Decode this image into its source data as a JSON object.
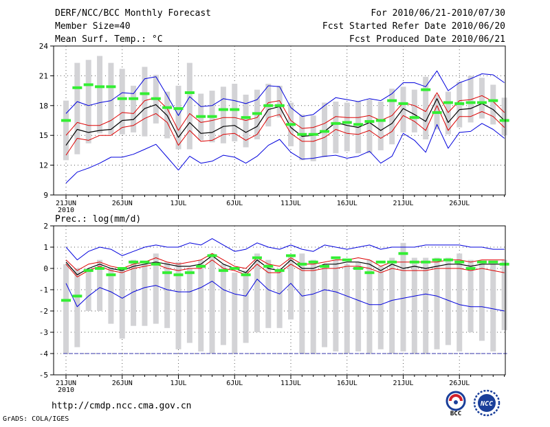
{
  "header": {
    "title": "DERF/NCC/BCC Monthly Forecast",
    "member_size": "Member Size=40",
    "variable": "Mean Surf. Temp.: °C",
    "period": "For 2010/06/21-2010/07/30",
    "started": "Fcst Started Refer Date 2010/06/20",
    "produced": "Fcst Produced Date 2010/06/21"
  },
  "footer": {
    "url": "http://cmdp.ncc.cma.gov.cn",
    "grads": "GrADS: COLA/IGES",
    "logo_bcc": "BCC",
    "logo_ncc": "NCC"
  },
  "colors": {
    "box": "#d3d3d6",
    "mean": "#000000",
    "spread": "#dd0000",
    "extreme": "#0000dd",
    "obs": "#33ee33",
    "grid": "#555555"
  },
  "chart_data": [
    {
      "type": "line",
      "title": "Mean Surf. Temp.: °C",
      "ylim": [
        9,
        24
      ],
      "yticks": [
        9,
        12,
        15,
        18,
        21,
        24
      ],
      "xtick_labels": [
        "21JUN",
        "26JUN",
        "1JUL",
        "6JUL",
        "11JUL",
        "16JUL",
        "21JUL",
        "26JUL"
      ],
      "year_label": "2010",
      "grid": "dotted",
      "days": 40,
      "series": [
        {
          "name": "ensemble_mean",
          "values": [
            14.0,
            15.6,
            15.3,
            15.5,
            15.6,
            16.5,
            16.6,
            17.7,
            18.1,
            17.0,
            14.8,
            16.3,
            15.2,
            15.3,
            15.9,
            16.0,
            15.3,
            15.9,
            17.6,
            17.9,
            15.8,
            14.9,
            15.0,
            15.4,
            16.3,
            16.0,
            15.8,
            16.3,
            15.5,
            16.2,
            17.7,
            17.1,
            16.4,
            18.7,
            16.3,
            17.6,
            17.7,
            18.2,
            17.6,
            16.5
          ]
        },
        {
          "name": "upper_spread",
          "values": [
            15.0,
            16.3,
            16.0,
            16.0,
            16.5,
            17.3,
            17.2,
            18.5,
            18.8,
            17.7,
            15.5,
            17.2,
            16.3,
            16.5,
            16.8,
            16.8,
            16.5,
            16.8,
            18.3,
            18.5,
            16.5,
            15.7,
            15.8,
            16.2,
            16.9,
            16.8,
            16.8,
            17.0,
            16.5,
            17.0,
            18.3,
            18.0,
            17.4,
            19.3,
            17.3,
            18.5,
            18.6,
            19.0,
            18.4,
            17.3
          ]
        },
        {
          "name": "lower_spread",
          "values": [
            13.0,
            14.7,
            14.5,
            15.0,
            15.0,
            15.8,
            16.0,
            16.7,
            17.2,
            16.3,
            14.0,
            15.5,
            14.4,
            14.5,
            15.1,
            15.2,
            14.5,
            15.1,
            16.8,
            17.1,
            15.2,
            14.4,
            14.4,
            14.8,
            15.6,
            15.2,
            15.1,
            15.5,
            14.7,
            15.4,
            17.0,
            16.4,
            15.5,
            18.0,
            15.5,
            16.9,
            16.9,
            17.4,
            16.9,
            15.8
          ]
        },
        {
          "name": "ensemble_max",
          "values": [
            17.2,
            18.4,
            18.0,
            18.3,
            18.5,
            19.3,
            19.2,
            20.7,
            20.9,
            19.0,
            17.0,
            18.9,
            17.9,
            18.0,
            18.7,
            18.5,
            18.2,
            18.6,
            20.0,
            19.9,
            17.8,
            16.9,
            17.1,
            18.0,
            18.8,
            18.6,
            18.4,
            18.7,
            18.5,
            19.2,
            20.3,
            20.3,
            19.9,
            21.5,
            19.5,
            20.3,
            20.7,
            21.2,
            21.1,
            20.3
          ]
        },
        {
          "name": "ensemble_min",
          "values": [
            10.2,
            11.3,
            11.7,
            12.2,
            12.8,
            12.8,
            13.1,
            13.6,
            14.1,
            12.8,
            11.5,
            12.9,
            12.2,
            12.4,
            13.0,
            12.8,
            12.2,
            12.9,
            14.0,
            14.6,
            13.3,
            12.6,
            12.7,
            12.9,
            13.0,
            12.7,
            12.9,
            13.4,
            12.2,
            12.9,
            15.2,
            14.5,
            13.3,
            16.1,
            13.7,
            15.3,
            15.4,
            16.2,
            15.6,
            14.7
          ]
        },
        {
          "name": "observed",
          "values": [
            16.5,
            19.8,
            20.1,
            19.9,
            19.9,
            18.7,
            18.7,
            19.2,
            18.7,
            17.8,
            17.7,
            19.3,
            16.9,
            16.9,
            17.6,
            17.6,
            16.8,
            17.2,
            18.0,
            18.0,
            16.1,
            15.1,
            15.1,
            15.4,
            16.2,
            16.3,
            16.1,
            16.4,
            16.5,
            18.5,
            18.2,
            16.8,
            19.6,
            17.3,
            18.3,
            18.2,
            18.3,
            18.3,
            18.5,
            16.5
          ]
        },
        {
          "name": "box_top",
          "values": [
            18.5,
            22.3,
            22.6,
            23.0,
            22.3,
            21.7,
            20.0,
            21.9,
            21.1,
            19.4,
            20.0,
            22.3,
            19.2,
            19.5,
            19.9,
            20.2,
            19.1,
            19.6,
            20.2,
            20.0,
            18.3,
            17.1,
            17.0,
            18.3,
            18.4,
            18.3,
            18.4,
            18.6,
            18.4,
            19.7,
            19.9,
            19.6,
            20.9,
            19.1,
            19.4,
            20.4,
            21.0,
            20.8,
            20.1,
            18.8
          ]
        },
        {
          "name": "box_bottom",
          "values": [
            12.5,
            13.1,
            14.2,
            15.2,
            15.1,
            15.1,
            15.3,
            14.9,
            16.2,
            14.7,
            13.6,
            13.6,
            14.5,
            14.3,
            14.2,
            14.4,
            13.8,
            14.6,
            15.9,
            16.8,
            13.9,
            12.5,
            12.4,
            12.8,
            13.2,
            13.4,
            13.2,
            13.2,
            13.5,
            14.1,
            15.3,
            15.3,
            14.6,
            15.6,
            15.1,
            15.8,
            16.3,
            16.7,
            16.1,
            15.0
          ]
        }
      ]
    },
    {
      "type": "line",
      "title": "Prec.: log(mm/d)",
      "ylim": [
        -5,
        2
      ],
      "yticks": [
        -5,
        -4,
        -3,
        -2,
        -1,
        0,
        1,
        2
      ],
      "xtick_labels": [
        "21JUN",
        "26JUN",
        "1JUL",
        "6JUL",
        "11JUL",
        "16JUL",
        "21JUL",
        "26JUL"
      ],
      "year_label": "2010",
      "grid": "dotted",
      "days": 40,
      "series": [
        {
          "name": "ensemble_mean",
          "values": [
            0.3,
            -0.3,
            0.0,
            0.2,
            0.0,
            -0.1,
            0.1,
            0.2,
            0.3,
            0.2,
            0.1,
            0.1,
            0.2,
            0.6,
            0.2,
            0.0,
            -0.2,
            0.4,
            0.0,
            -0.1,
            0.4,
            0.0,
            0.0,
            0.2,
            0.2,
            0.3,
            0.3,
            0.2,
            -0.1,
            0.2,
            0.0,
            0.1,
            0.0,
            0.1,
            0.2,
            0.2,
            0.1,
            0.2,
            0.2,
            0.2
          ]
        },
        {
          "name": "upper_spread",
          "values": [
            0.4,
            -0.1,
            0.2,
            0.3,
            0.1,
            0.0,
            0.2,
            0.3,
            0.5,
            0.3,
            0.2,
            0.3,
            0.4,
            0.7,
            0.4,
            0.1,
            0.0,
            0.5,
            0.2,
            0.1,
            0.5,
            0.2,
            0.2,
            0.3,
            0.4,
            0.4,
            0.5,
            0.4,
            0.1,
            0.3,
            0.3,
            0.3,
            0.3,
            0.3,
            0.4,
            0.4,
            0.3,
            0.4,
            0.4,
            0.4
          ]
        },
        {
          "name": "lower_spread",
          "values": [
            0.2,
            -0.4,
            -0.1,
            0.1,
            -0.1,
            -0.2,
            0.0,
            0.1,
            0.2,
            0.0,
            -0.1,
            0.0,
            0.0,
            0.4,
            0.0,
            -0.1,
            -0.3,
            0.2,
            -0.2,
            -0.2,
            0.2,
            -0.1,
            -0.1,
            0.0,
            0.0,
            0.1,
            0.1,
            0.0,
            -0.2,
            0.0,
            -0.1,
            -0.1,
            -0.1,
            0.0,
            0.0,
            0.0,
            -0.1,
            0.0,
            -0.1,
            -0.2
          ]
        },
        {
          "name": "ensemble_max",
          "values": [
            1.0,
            0.4,
            0.8,
            1.0,
            0.9,
            0.6,
            0.8,
            1.0,
            1.1,
            1.0,
            1.0,
            1.2,
            1.1,
            1.4,
            1.1,
            0.8,
            0.9,
            1.2,
            1.0,
            0.9,
            1.1,
            0.9,
            0.8,
            1.1,
            1.0,
            0.9,
            1.0,
            1.1,
            0.9,
            1.0,
            1.0,
            1.0,
            1.1,
            1.1,
            1.1,
            1.1,
            1.0,
            1.0,
            0.9,
            0.9
          ]
        },
        {
          "name": "ensemble_min",
          "values": [
            -0.7,
            -1.8,
            -1.3,
            -0.9,
            -1.1,
            -1.4,
            -1.1,
            -0.9,
            -0.8,
            -1.0,
            -1.1,
            -1.1,
            -0.9,
            -0.6,
            -1.0,
            -1.2,
            -1.3,
            -0.5,
            -1.0,
            -1.2,
            -0.7,
            -1.3,
            -1.2,
            -1.0,
            -1.1,
            -1.3,
            -1.5,
            -1.7,
            -1.7,
            -1.5,
            -1.4,
            -1.3,
            -1.2,
            -1.3,
            -1.5,
            -1.7,
            -1.8,
            -1.8,
            -1.9,
            -2.0
          ]
        },
        {
          "name": "observed",
          "values": [
            -1.5,
            -1.3,
            -0.1,
            0.0,
            -0.3,
            0.0,
            0.3,
            0.3,
            0.2,
            -0.2,
            -0.3,
            -0.2,
            0.1,
            0.6,
            -0.1,
            0.0,
            -0.3,
            0.5,
            0.1,
            -0.1,
            0.6,
            0.2,
            0.3,
            0.1,
            0.5,
            0.4,
            0.0,
            -0.2,
            0.3,
            0.3,
            0.7,
            0.3,
            0.3,
            0.4,
            0.4,
            0.3,
            0.0,
            0.3,
            0.3,
            0.2
          ]
        },
        {
          "name": "box_top",
          "values": [
            0.2,
            0.0,
            0.0,
            0.4,
            0.0,
            -0.1,
            0.4,
            0.2,
            0.7,
            0.3,
            0.3,
            0.0,
            0.4,
            0.7,
            0.2,
            -0.2,
            -0.1,
            0.7,
            0.4,
            0.0,
            0.6,
            0.7,
            0.4,
            0.2,
            0.4,
            0.2,
            0.3,
            0.4,
            0.1,
            0.5,
            1.2,
            0.5,
            0.5,
            0.5,
            0.5,
            0.7,
            0.4,
            0.3,
            0.2,
            0.4
          ]
        },
        {
          "name": "box_bottom",
          "values": [
            -4.0,
            -3.7,
            -2.0,
            -2.0,
            -2.6,
            -3.3,
            -2.7,
            -2.7,
            -2.6,
            -2.8,
            -3.8,
            -3.5,
            -3.9,
            -4.0,
            -3.6,
            -4.0,
            -3.5,
            -3.0,
            -2.8,
            -2.8,
            -2.4,
            -4.0,
            -4.0,
            -3.7,
            -3.9,
            -4.0,
            -3.9,
            -4.0,
            -3.8,
            -4.0,
            -3.9,
            -4.0,
            -4.0,
            -3.8,
            -3.6,
            -3.9,
            -3.0,
            -3.4,
            -3.9,
            -2.9
          ]
        }
      ]
    }
  ]
}
